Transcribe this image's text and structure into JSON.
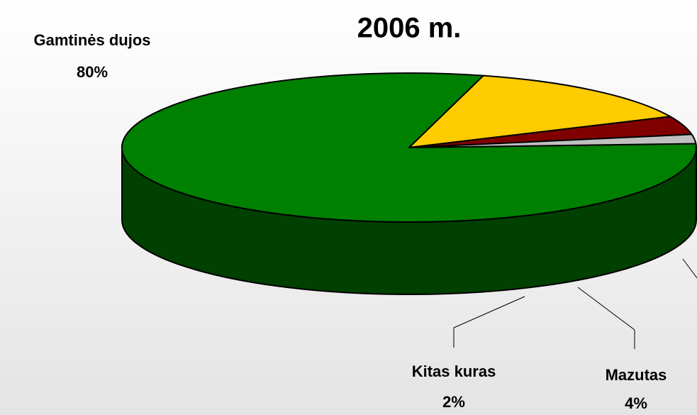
{
  "chart_data": {
    "type": "pie",
    "title": "2006 m.",
    "categories": [
      "Gamtinės dujos",
      null,
      "Mazutas",
      "Kitas kuras"
    ],
    "values": [
      80,
      14,
      4,
      2
    ],
    "value_labels": [
      "80%",
      null,
      "4%",
      "2%"
    ],
    "colors": [
      "#008000",
      "#ffcc00",
      "#800000",
      "#c0c0c0"
    ],
    "side_colors": [
      "#004000",
      "#806600",
      "#400000",
      "#606060"
    ]
  }
}
